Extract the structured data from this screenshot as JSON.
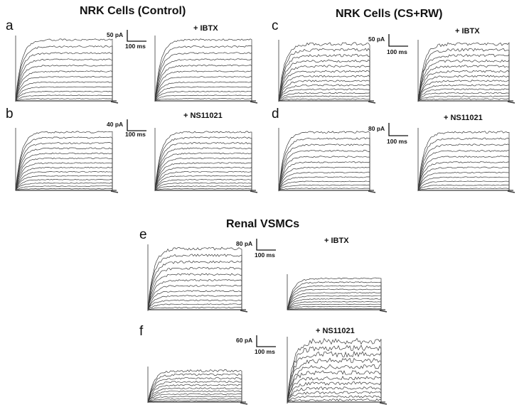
{
  "titles": {
    "control": "NRK Cells (Control)",
    "csrw": "NRK Cells (CS+RW)",
    "vsmc": "Renal VSMCs"
  },
  "panels": [
    {
      "id": "a",
      "letter": "a",
      "scale_current": "50 pA",
      "scale_time": "100 ms",
      "condition": "+ IBTX"
    },
    {
      "id": "b",
      "letter": "b",
      "scale_current": "40 pA",
      "scale_time": "100 ms",
      "condition": "+ NS11021"
    },
    {
      "id": "c",
      "letter": "c",
      "scale_current": "50 pA",
      "scale_time": "100 ms",
      "condition": "+ IBTX"
    },
    {
      "id": "d",
      "letter": "d",
      "scale_current": "80 pA",
      "scale_time": "100 ms",
      "condition": "+ NS11021"
    },
    {
      "id": "e",
      "letter": "e",
      "scale_current": "80 pA",
      "scale_time": "100 ms",
      "condition": "+ IBTX"
    },
    {
      "id": "f",
      "letter": "f",
      "scale_current": "60 pA",
      "scale_time": "100 ms",
      "condition": "+ NS11021"
    }
  ],
  "colors": {
    "trace": "#3a3a3a",
    "text": "#111111",
    "background": "#ffffff"
  }
}
